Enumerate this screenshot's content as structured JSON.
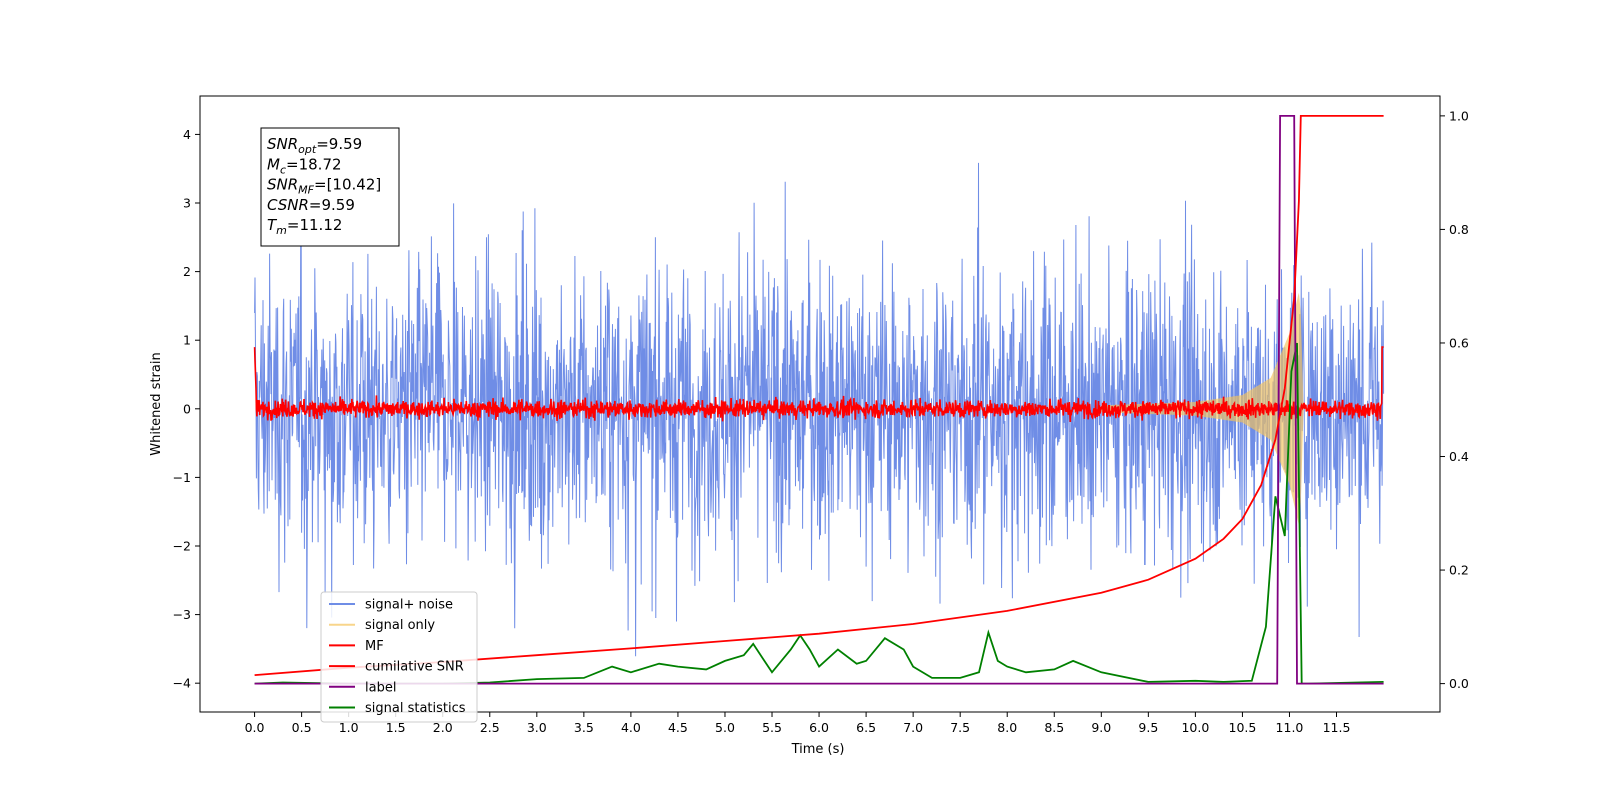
{
  "chart_data": {
    "type": "line",
    "title": "",
    "xlabel": "Time (s)",
    "ylabel": "Whitened strain",
    "y2label": "",
    "xlim": [
      -0.58,
      12.6
    ],
    "ylim": [
      -4.42,
      4.56
    ],
    "y2lim": [
      -0.05,
      1.035
    ],
    "x_ticks": [
      "0.0",
      "0.5",
      "1.0",
      "1.5",
      "2.0",
      "2.5",
      "3.0",
      "3.5",
      "4.0",
      "4.5",
      "5.0",
      "5.5",
      "6.0",
      "6.5",
      "7.0",
      "7.5",
      "8.0",
      "8.5",
      "9.0",
      "9.5",
      "10.0",
      "10.5",
      "11.0",
      "11.5"
    ],
    "y_ticks": [
      "4",
      "3",
      "2",
      "1",
      "0",
      "−1",
      "−2",
      "−3",
      "−4"
    ],
    "y2_ticks": [
      "1.0",
      "0.8",
      "0.6",
      "0.4",
      "0.2",
      "0.0"
    ],
    "grid": false,
    "legend_position": "lower-left",
    "annotation": {
      "lines": [
        {
          "sym": "SNR",
          "sub": "opt",
          "val": "=9.59"
        },
        {
          "sym": "M",
          "sub": "c",
          "val": "=18.72"
        },
        {
          "sym": "SNR",
          "sub": "MF",
          "val": "=[10.42]"
        },
        {
          "sym": "CSNR",
          "sub": "",
          "val": "=9.59"
        },
        {
          "sym": "T",
          "sub": "m",
          "val": "=11.12"
        }
      ]
    },
    "series": [
      {
        "name": "signal+ noise",
        "color": "#6f8de6",
        "axis": "left",
        "style": "noise band approx. ±2 (peaks to ±3.5)",
        "x_range": [
          0.0,
          12.0
        ]
      },
      {
        "name": "signal only",
        "color": "#f5c35a",
        "axis": "left",
        "style": "chirp envelope growing to ±1.7 near merger",
        "x": [
          0.0,
          9.0,
          10.0,
          10.5,
          10.8,
          11.0,
          11.1,
          11.12,
          11.15,
          12.0
        ],
        "amp": [
          0.0,
          0.05,
          0.1,
          0.2,
          0.45,
          1.1,
          1.7,
          1.4,
          0.0,
          0.0
        ]
      },
      {
        "name": "MF",
        "color": "#ff0000",
        "axis": "left",
        "style": "matched-filter output, noisy around 0 (±0.15)",
        "x_range": [
          0.0,
          12.0
        ]
      },
      {
        "name": "cumilative SNR",
        "color": "#ff0000",
        "axis": "right",
        "x": [
          0.0,
          1.0,
          2.0,
          3.0,
          4.0,
          5.0,
          6.0,
          7.0,
          8.0,
          9.0,
          9.5,
          10.0,
          10.3,
          10.5,
          10.7,
          10.85,
          10.95,
          11.05,
          11.1,
          11.12,
          12.0
        ],
        "y": [
          0.015,
          0.028,
          0.038,
          0.05,
          0.062,
          0.075,
          0.088,
          0.105,
          0.128,
          0.16,
          0.183,
          0.22,
          0.255,
          0.29,
          0.35,
          0.43,
          0.52,
          0.68,
          0.85,
          1.0,
          1.0
        ]
      },
      {
        "name": "label",
        "color": "#800080",
        "axis": "right",
        "x": [
          0.0,
          10.87,
          10.9,
          11.05,
          11.08,
          12.0
        ],
        "y": [
          0.0,
          0.0,
          1.0,
          1.0,
          0.0,
          0.0
        ]
      },
      {
        "name": "signal statistics",
        "color": "#008000",
        "axis": "right",
        "x": [
          0.0,
          0.3,
          1.0,
          2.0,
          2.5,
          3.0,
          3.5,
          3.8,
          4.0,
          4.3,
          4.5,
          4.8,
          5.0,
          5.2,
          5.3,
          5.5,
          5.7,
          5.8,
          5.9,
          6.0,
          6.2,
          6.4,
          6.5,
          6.7,
          6.9,
          7.0,
          7.2,
          7.5,
          7.7,
          7.8,
          7.9,
          8.0,
          8.2,
          8.5,
          8.7,
          9.0,
          9.5,
          10.0,
          10.3,
          10.6,
          10.75,
          10.85,
          10.95,
          11.02,
          11.08,
          11.13,
          11.2,
          12.0
        ],
        "y": [
          0.0,
          0.002,
          0.0,
          0.0,
          0.002,
          0.008,
          0.01,
          0.03,
          0.02,
          0.035,
          0.03,
          0.025,
          0.04,
          0.05,
          0.07,
          0.02,
          0.06,
          0.085,
          0.06,
          0.03,
          0.06,
          0.035,
          0.04,
          0.08,
          0.06,
          0.03,
          0.01,
          0.01,
          0.02,
          0.09,
          0.04,
          0.03,
          0.02,
          0.025,
          0.04,
          0.02,
          0.003,
          0.005,
          0.003,
          0.005,
          0.1,
          0.33,
          0.26,
          0.55,
          0.6,
          0.0,
          0.0,
          0.003
        ]
      }
    ]
  }
}
